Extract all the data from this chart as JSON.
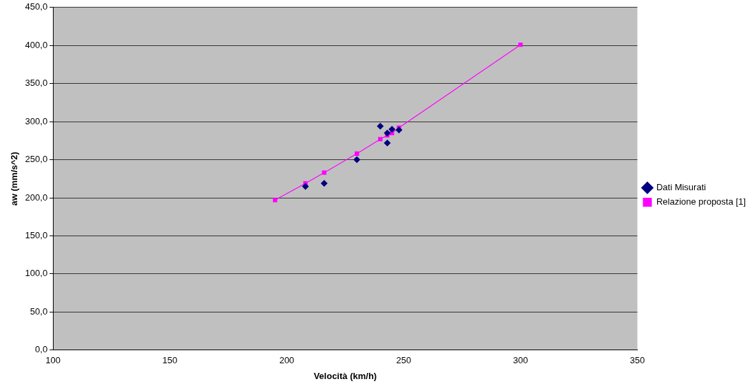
{
  "chart_data": {
    "type": "scatter",
    "xlabel": "Velocità (km/h)",
    "ylabel": "aw (mm/s^2)",
    "xlim": [
      100,
      350
    ],
    "xticks": [
      100,
      150,
      200,
      250,
      300,
      350
    ],
    "ylim": [
      0,
      450
    ],
    "yticks": [
      {
        "value": 0,
        "label": "0,0"
      },
      {
        "value": 50,
        "label": "50,0"
      },
      {
        "value": 100,
        "label": "100,0"
      },
      {
        "value": 150,
        "label": "150,0"
      },
      {
        "value": 200,
        "label": "200,0"
      },
      {
        "value": 250,
        "label": "250,0"
      },
      {
        "value": 300,
        "label": "300,0"
      },
      {
        "value": 350,
        "label": "350,0"
      },
      {
        "value": 400,
        "label": "400,0"
      },
      {
        "value": 450,
        "label": "450,0"
      }
    ],
    "grid": "y",
    "legend": "right",
    "series": [
      {
        "name": "Dati Misurati",
        "type": "scatter",
        "marker": "diamond",
        "color": "#000080",
        "x": [
          208,
          216,
          230,
          240,
          243,
          243,
          245,
          248
        ],
        "values": [
          215,
          219,
          250,
          294,
          272,
          285,
          290,
          289
        ]
      },
      {
        "name": "Relazione proposta [1]",
        "type": "line",
        "marker": "square",
        "color": "#ff00ff",
        "x": [
          195,
          208,
          216,
          230,
          240,
          243,
          245,
          248,
          300
        ],
        "values": [
          197,
          219,
          233,
          258,
          277,
          282,
          285,
          292,
          401
        ]
      }
    ]
  }
}
